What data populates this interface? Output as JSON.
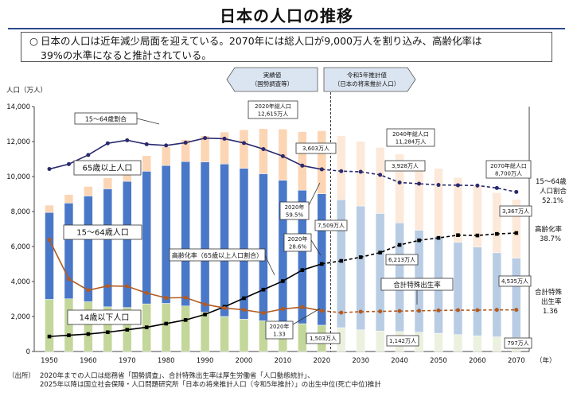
{
  "title": "日本の人口の推移",
  "summary": {
    "bullet": "○",
    "line1": "日本の人口は近年減少局面を迎えている。2070年には総人口が9,000万人を割り込み、高齢化率は",
    "line2": "39%の水準になると推計されている。"
  },
  "source": {
    "label": "（出所）",
    "line1": "2020年までの人口は総務省「国勢調査」、合計特殊出生率は厚生労働省「人口動態統計」、",
    "line2": "2025年以降は国立社会保障・人口問題研究所「日本の将来推計人口（令和5年推計）」の出生中位(死亡中位)推計"
  },
  "colors": {
    "age0_14_actual": "#c4d79b",
    "age15_64_actual": "#4a78c8",
    "age65_actual": "#fcd5b4",
    "age0_14_proj": "#ebf1de",
    "age15_64_proj": "#b8cce4",
    "age65_proj": "#fde9d9",
    "ratio_line": "#2a2a6e",
    "aging_line": "#000000",
    "tfr_line": "#b35a1f",
    "arrow_fill": "#dbe5f1",
    "title_rule": "#2b4a8c"
  },
  "chart_data": {
    "type": "bar",
    "stacked": true,
    "ylabel": "人口（万人）",
    "xlabel": "（年）",
    "ylim": [
      0,
      14000
    ],
    "yticks": [
      "0",
      "2,000",
      "4,000",
      "6,000",
      "8,000",
      "10,000",
      "12,000",
      "14,000"
    ],
    "x": [
      1950,
      1955,
      1960,
      1965,
      1970,
      1975,
      1980,
      1985,
      1990,
      1995,
      2000,
      2005,
      2010,
      2015,
      2020,
      2025,
      2030,
      2035,
      2040,
      2045,
      2050,
      2055,
      2060,
      2065,
      2070
    ],
    "xticks": [
      "1950",
      "1960",
      "1970",
      "1980",
      "1990",
      "2000",
      "2010",
      "2020",
      "2030",
      "2040",
      "2050",
      "2060",
      "2070"
    ],
    "projection_start_index": 15,
    "series": [
      {
        "name": "14歳以下人口",
        "values": [
          2979,
          3012,
          2843,
          2553,
          2515,
          2722,
          2751,
          2603,
          2249,
          2001,
          1847,
          1752,
          1684,
          1589,
          1503,
          1363,
          1240,
          1169,
          1142,
          1103,
          1041,
          966,
          893,
          836,
          797
        ]
      },
      {
        "name": "15～64歳人口",
        "values": [
          4966,
          5473,
          6047,
          6744,
          7212,
          7581,
          7883,
          8251,
          8590,
          8716,
          8622,
          8409,
          8103,
          7629,
          7509,
          7310,
          7076,
          6722,
          6213,
          5832,
          5540,
          5276,
          5078,
          4809,
          4535
        ]
      },
      {
        "name": "65歳以上人口",
        "values": [
          416,
          479,
          540,
          624,
          739,
          887,
          1065,
          1247,
          1489,
          1826,
          2204,
          2576,
          2925,
          3347,
          3603,
          3653,
          3696,
          3773,
          3928,
          3945,
          3888,
          3704,
          3538,
          3432,
          3367
        ]
      }
    ],
    "lines": [
      {
        "name": "15～64歳割合",
        "axis": "ratio",
        "values": [
          59.6,
          61.2,
          64.2,
          68.0,
          69.0,
          67.7,
          67.3,
          68.2,
          69.7,
          69.5,
          68.1,
          66.1,
          63.8,
          60.7,
          59.5,
          58.9,
          58.7,
          57.7,
          55.2,
          54.8,
          54.4,
          54.3,
          54.2,
          53.4,
          52.1
        ]
      },
      {
        "name": "高齢化率（65歳以上人口割合）",
        "axis": "ratio",
        "values": [
          4.9,
          5.3,
          5.7,
          6.3,
          7.1,
          7.9,
          9.1,
          10.3,
          12.1,
          14.6,
          17.4,
          20.2,
          23.0,
          26.6,
          28.6,
          29.6,
          30.8,
          32.3,
          34.8,
          36.3,
          37.1,
          38.0,
          37.9,
          38.4,
          38.7
        ]
      },
      {
        "name": "合計特殊出生率",
        "axis": "tfr",
        "values": [
          3.65,
          2.37,
          2.0,
          2.14,
          2.13,
          1.91,
          1.75,
          1.76,
          1.54,
          1.42,
          1.36,
          1.26,
          1.39,
          1.45,
          1.33,
          1.27,
          1.3,
          1.31,
          1.32,
          1.33,
          1.34,
          1.35,
          1.35,
          1.36,
          1.36
        ]
      }
    ],
    "right_axis": {
      "ratio_max": 80,
      "tfr_max": 8
    },
    "period_labels": [
      {
        "name": "actual",
        "line1": "実績値",
        "line2": "（国勢調査等）"
      },
      {
        "name": "projection",
        "line1": "令和5年推計値",
        "line2": "（日本の将来推計人口）"
      }
    ],
    "annotations": {
      "total_2020": {
        "line1": "2020年総人口",
        "line2": "12,615万人"
      },
      "total_2040": {
        "line1": "2040年総人口",
        "line2": "11,284万人"
      },
      "total_2070": {
        "line1": "2070年総人口",
        "line2": "8,700万人"
      },
      "v65_2020": "3,603万人",
      "v65_2040": "3,928万人",
      "v65_2070": "3,367万人",
      "v1564_2020": "7,509万人",
      "v1564_2040": "6,213万人",
      "v1564_2070": "4,535万人",
      "v014_2020": "1,503万人",
      "v014_2040": "1,142万人",
      "v014_2070": "797万人",
      "ratio1564_2020": {
        "line1": "2020年",
        "line2": "59.5%"
      },
      "aging_2020": {
        "line1": "2020年",
        "line2": "28.6%"
      },
      "tfr_2020": {
        "line1": "2020年",
        "line2": "1.33"
      },
      "legend_1564_ratio": "15～64歳割合",
      "legend_65": "65歳以上人口",
      "legend_1564": "15～64歳人口",
      "legend_aging": "高齢化率（65歳以上人口割合）",
      "legend_014": "14歳以下人口",
      "legend_tfr": "合計特殊出生率",
      "right_1564": {
        "line1": "15～64歳",
        "line2": "人口割合",
        "line3": "52.1%"
      },
      "right_aging": {
        "line1": "高齢化率",
        "line2": "38.7%"
      },
      "right_tfr": {
        "line1": "合計特殊",
        "line2": "出生率",
        "line3": "1.36"
      }
    }
  }
}
